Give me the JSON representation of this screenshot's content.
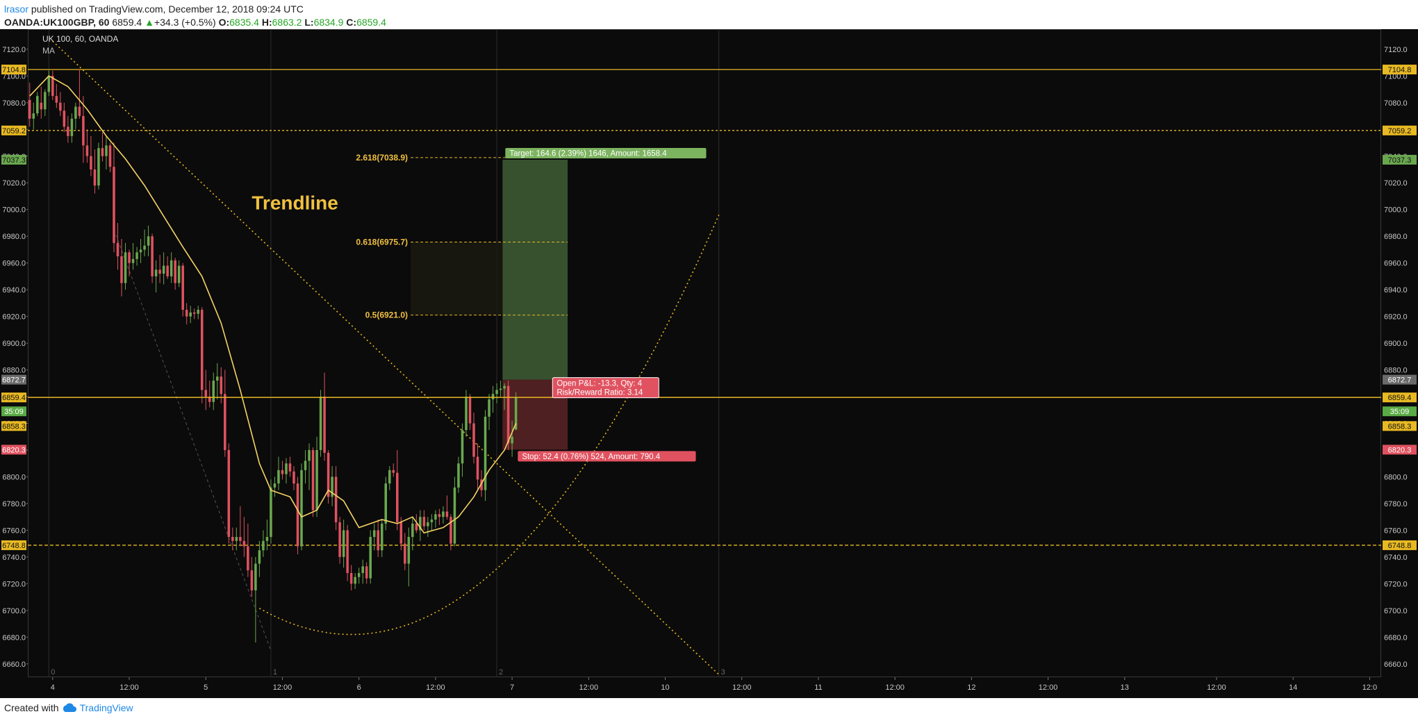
{
  "header": {
    "author": "lrasor",
    "published": " published on TradingView.com, December 12, 2018 09:24 UTC",
    "symbol": "OANDA:UK100GBP, 60",
    "last": "6859.4",
    "change": "+34.3 (+0.5%)",
    "open": "6835.4",
    "high": "6863.2",
    "low": "6834.9",
    "close": "6859.4"
  },
  "footer": {
    "created_with": "Created with",
    "brand": "TradingView"
  },
  "colors": {
    "background": "#0b0b0b",
    "up_candle": "#6aa84f",
    "down_candle": "#e05260",
    "ma_line": "#f6d365",
    "annotation": "#e8b923",
    "text_label": "#f0c040",
    "target_zone": "#3f5e36",
    "stop_zone": "#5a2426",
    "axis_text": "#c8c8c8"
  },
  "chart_data": {
    "type": "candlestick",
    "title": "UK 100, 60, OANDA",
    "indicator": "MA",
    "ylim": [
      6650,
      7135
    ],
    "y_ticks": [
      7120,
      7100,
      7080,
      7060,
      7040,
      7020,
      7000,
      6980,
      6960,
      6940,
      6920,
      6900,
      6880,
      6860,
      6840,
      6820,
      6800,
      6780,
      6760,
      6740,
      6720,
      6700,
      6680,
      6660
    ],
    "x_ticks": [
      "4",
      "12:00",
      "5",
      "12:00",
      "6",
      "12:00",
      "7",
      "12:00",
      "10",
      "12:00",
      "11",
      "12:00",
      "12",
      "12:00",
      "13",
      "12:00",
      "14",
      "12:0"
    ],
    "x_tick_bars": [
      6,
      26,
      46,
      66,
      86,
      106,
      126,
      146,
      166,
      186,
      206,
      226,
      246,
      266,
      286,
      310,
      330,
      350
    ],
    "x_range_bars": [
      -0.5,
      353
    ],
    "grid_marks": [
      {
        "label": "0",
        "bar": 5
      },
      {
        "label": "1",
        "bar": 63
      },
      {
        "label": "2",
        "bar": 122
      },
      {
        "label": "3",
        "bar": 180
      }
    ],
    "candles": [
      [
        7082,
        7095,
        7062,
        7068
      ],
      [
        7068,
        7080,
        7060,
        7072
      ],
      [
        7072,
        7088,
        7070,
        7085
      ],
      [
        7080,
        7092,
        7068,
        7075
      ],
      [
        7075,
        7090,
        7070,
        7088
      ],
      [
        7088,
        7104,
        7085,
        7100
      ],
      [
        7100,
        7104,
        7082,
        7085
      ],
      [
        7085,
        7094,
        7076,
        7080
      ],
      [
        7080,
        7088,
        7070,
        7074
      ],
      [
        7074,
        7080,
        7058,
        7062
      ],
      [
        7062,
        7070,
        7050,
        7055
      ],
      [
        7055,
        7072,
        7050,
        7068
      ],
      [
        7068,
        7080,
        7060,
        7077
      ],
      [
        7077,
        7105,
        7068,
        7070
      ],
      [
        7070,
        7085,
        7035,
        7048
      ],
      [
        7048,
        7060,
        7035,
        7040
      ],
      [
        7040,
        7055,
        7025,
        7030
      ],
      [
        7030,
        7045,
        7012,
        7018
      ],
      [
        7018,
        7050,
        7015,
        7046
      ],
      [
        7046,
        7058,
        7036,
        7040
      ],
      [
        7040,
        7055,
        7030,
        7048
      ],
      [
        7048,
        7050,
        7028,
        7032
      ],
      [
        7032,
        7050,
        6968,
        6975
      ],
      [
        6975,
        6990,
        6955,
        6965
      ],
      [
        6965,
        6978,
        6935,
        6945
      ],
      [
        6945,
        6975,
        6940,
        6968
      ],
      [
        6968,
        6970,
        6950,
        6960
      ],
      [
        6960,
        6975,
        6955,
        6963
      ],
      [
        6963,
        6972,
        6958,
        6968
      ],
      [
        6968,
        6978,
        6960,
        6970
      ],
      [
        6970,
        6985,
        6965,
        6973
      ],
      [
        6973,
        6988,
        6965,
        6980
      ],
      [
        6980,
        6982,
        6945,
        6950
      ],
      [
        6950,
        6962,
        6938,
        6955
      ],
      [
        6955,
        6966,
        6945,
        6952
      ],
      [
        6952,
        6968,
        6944,
        6958
      ],
      [
        6958,
        6965,
        6948,
        6950
      ],
      [
        6950,
        6968,
        6945,
        6962
      ],
      [
        6962,
        6964,
        6940,
        6945
      ],
      [
        6945,
        6962,
        6942,
        6958
      ],
      [
        6958,
        6960,
        6920,
        6925
      ],
      [
        6925,
        6930,
        6914,
        6920
      ],
      [
        6920,
        6928,
        6915,
        6923
      ],
      [
        6923,
        6926,
        6918,
        6922
      ],
      [
        6922,
        6928,
        6918,
        6925
      ],
      [
        6925,
        6927,
        6855,
        6865
      ],
      [
        6865,
        6880,
        6850,
        6860
      ],
      [
        6860,
        6872,
        6852,
        6856
      ],
      [
        6856,
        6878,
        6850,
        6872
      ],
      [
        6872,
        6885,
        6858,
        6875
      ],
      [
        6875,
        6882,
        6855,
        6862
      ],
      [
        6862,
        6880,
        6815,
        6820
      ],
      [
        6820,
        6825,
        6750,
        6755
      ],
      [
        6755,
        6762,
        6745,
        6752
      ],
      [
        6752,
        6762,
        6745,
        6755
      ],
      [
        6755,
        6778,
        6748,
        6752
      ],
      [
        6752,
        6770,
        6740,
        6748
      ],
      [
        6748,
        6765,
        6725,
        6730
      ],
      [
        6730,
        6740,
        6710,
        6715
      ],
      [
        6715,
        6740,
        6676,
        6735
      ],
      [
        6735,
        6752,
        6725,
        6745
      ],
      [
        6745,
        6760,
        6740,
        6752
      ],
      [
        6752,
        6768,
        6745,
        6755
      ],
      [
        6755,
        6798,
        6750,
        6792
      ],
      [
        6792,
        6800,
        6785,
        6795
      ],
      [
        6795,
        6815,
        6790,
        6805
      ],
      [
        6805,
        6812,
        6798,
        6802
      ],
      [
        6802,
        6814,
        6795,
        6810
      ],
      [
        6810,
        6815,
        6800,
        6804
      ],
      [
        6804,
        6808,
        6790,
        6795
      ],
      [
        6795,
        6800,
        6742,
        6748
      ],
      [
        6748,
        6810,
        6745,
        6805
      ],
      [
        6805,
        6820,
        6795,
        6812
      ],
      [
        6812,
        6825,
        6790,
        6820
      ],
      [
        6820,
        6822,
        6770,
        6775
      ],
      [
        6775,
        6830,
        6770,
        6820
      ],
      [
        6820,
        6865,
        6815,
        6860
      ],
      [
        6860,
        6878,
        6812,
        6818
      ],
      [
        6818,
        6820,
        6780,
        6785
      ],
      [
        6785,
        6808,
        6778,
        6800
      ],
      [
        6800,
        6808,
        6760,
        6766
      ],
      [
        6766,
        6770,
        6735,
        6740
      ],
      [
        6740,
        6768,
        6732,
        6760
      ],
      [
        6760,
        6764,
        6722,
        6728
      ],
      [
        6728,
        6734,
        6715,
        6720
      ],
      [
        6720,
        6728,
        6716,
        6725
      ],
      [
        6725,
        6732,
        6720,
        6728
      ],
      [
        6728,
        6738,
        6720,
        6733
      ],
      [
        6733,
        6736,
        6720,
        6724
      ],
      [
        6724,
        6760,
        6720,
        6755
      ],
      [
        6755,
        6765,
        6745,
        6760
      ],
      [
        6760,
        6768,
        6740,
        6745
      ],
      [
        6745,
        6768,
        6740,
        6765
      ],
      [
        6765,
        6800,
        6760,
        6795
      ],
      [
        6795,
        6808,
        6790,
        6805
      ],
      [
        6805,
        6810,
        6800,
        6803
      ],
      [
        6803,
        6820,
        6760,
        6766
      ],
      [
        6766,
        6770,
        6745,
        6750
      ],
      [
        6750,
        6758,
        6730,
        6735
      ],
      [
        6735,
        6762,
        6718,
        6755
      ],
      [
        6755,
        6770,
        6745,
        6765
      ],
      [
        6765,
        6772,
        6758,
        6760
      ],
      [
        6760,
        6775,
        6752,
        6770
      ],
      [
        6770,
        6775,
        6760,
        6763
      ],
      [
        6763,
        6770,
        6755,
        6766
      ],
      [
        6766,
        6772,
        6760,
        6768
      ],
      [
        6768,
        6775,
        6762,
        6772
      ],
      [
        6772,
        6776,
        6764,
        6770
      ],
      [
        6770,
        6778,
        6765,
        6774
      ],
      [
        6774,
        6786,
        6768,
        6770
      ],
      [
        6770,
        6772,
        6745,
        6750
      ],
      [
        6750,
        6800,
        6748,
        6792
      ],
      [
        6792,
        6815,
        6788,
        6810
      ],
      [
        6810,
        6840,
        6800,
        6835
      ],
      [
        6835,
        6865,
        6830,
        6860
      ],
      [
        6860,
        6862,
        6835,
        6840
      ],
      [
        6840,
        6848,
        6810,
        6815
      ],
      [
        6815,
        6825,
        6790,
        6798
      ],
      [
        6798,
        6805,
        6785,
        6790
      ],
      [
        6790,
        6850,
        6782,
        6845
      ],
      [
        6845,
        6862,
        6835,
        6858
      ],
      [
        6858,
        6868,
        6848,
        6862
      ],
      [
        6862,
        6870,
        6855,
        6865
      ],
      [
        6865,
        6872,
        6860,
        6866
      ],
      [
        6866,
        6870,
        6850,
        6868
      ],
      [
        6868,
        6872,
        6820,
        6825
      ],
      [
        6825,
        6842,
        6815,
        6830
      ],
      [
        6835.4,
        6863.2,
        6834.9,
        6859.4
      ]
    ],
    "ma": [
      [
        0,
        7085
      ],
      [
        5,
        7100
      ],
      [
        10,
        7092
      ],
      [
        15,
        7075
      ],
      [
        20,
        7055
      ],
      [
        25,
        7038
      ],
      [
        30,
        7018
      ],
      [
        35,
        6995
      ],
      [
        40,
        6972
      ],
      [
        45,
        6950
      ],
      [
        50,
        6915
      ],
      [
        55,
        6865
      ],
      [
        60,
        6810
      ],
      [
        63,
        6790
      ],
      [
        68,
        6785
      ],
      [
        71,
        6770
      ],
      [
        75,
        6775
      ],
      [
        78,
        6790
      ],
      [
        82,
        6782
      ],
      [
        86,
        6762
      ],
      [
        92,
        6768
      ],
      [
        96,
        6765
      ],
      [
        100,
        6770
      ],
      [
        103,
        6758
      ],
      [
        108,
        6762
      ],
      [
        112,
        6770
      ],
      [
        116,
        6785
      ],
      [
        120,
        6805
      ],
      [
        124,
        6820
      ],
      [
        127,
        6840
      ]
    ],
    "levels": [
      {
        "price": 7104.8,
        "label": "7104.8",
        "style": "solid"
      },
      {
        "price": 7059.2,
        "label": "7059.2",
        "style": "dotted"
      },
      {
        "price": 6748.8,
        "label": "6748.8",
        "style": "dashed"
      }
    ],
    "trendline": {
      "text": "Trendline",
      "from": [
        6,
        7126
      ],
      "to": [
        180,
        6652
      ]
    },
    "fib_lines": [
      {
        "label": "2.618(7038.9)",
        "price": 7038.9
      },
      {
        "label": "0.618(6975.7)",
        "price": 6975.7
      },
      {
        "label": "0.5(6921.0)",
        "price": 6921.0
      }
    ],
    "position": {
      "entry": 6872.7,
      "target": 7037.3,
      "stop": 6820.3,
      "target_text": "Target: 164.6 (2.39%) 1646, Amount: 1658.4",
      "stop_text": "Stop: 52.4 (0.76%) 524, Amount: 790.4",
      "pnl_text": "Open P&L: -13.3, Qty: 4",
      "rr_text": "Risk/Reward Ratio: 3.14"
    },
    "price_badges": [
      {
        "label": "7104.8",
        "price": 7104.8,
        "type": "level"
      },
      {
        "label": "7059.2",
        "price": 7059.2,
        "type": "level"
      },
      {
        "label": "7037.3",
        "price": 7037.3,
        "type": "target"
      },
      {
        "label": "6872.7",
        "price": 6872.7,
        "type": "entry"
      },
      {
        "label": "6859.4",
        "price": 6859.4,
        "type": "last"
      },
      {
        "label": "35:09",
        "price": 6849,
        "type": "timer"
      },
      {
        "label": "6858.3",
        "price": 6838,
        "type": "ma"
      },
      {
        "label": "6820.3",
        "price": 6820.3,
        "type": "stop"
      },
      {
        "label": "6748.8",
        "price": 6748.8,
        "type": "level"
      }
    ]
  }
}
